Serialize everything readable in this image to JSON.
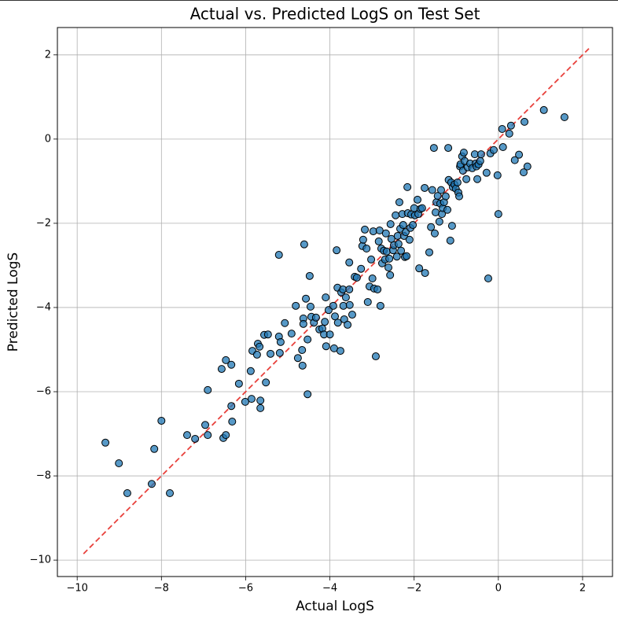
{
  "chart_data": {
    "type": "scatter",
    "title": "Actual vs. Predicted LogS on Test Set",
    "x_label": "Actual LogS",
    "y_label": "Predicted LogS",
    "color": "#1f77b4",
    "edge_color": "#000000",
    "grid": true,
    "xlim": [
      -10.47,
      2.71
    ],
    "ylim": [
      -10.39,
      2.65
    ],
    "xticks": [
      {
        "value": -10,
        "label": "−10"
      },
      {
        "value": -8,
        "label": "−8"
      },
      {
        "value": -6,
        "label": "−6"
      },
      {
        "value": -4,
        "label": "−4"
      },
      {
        "value": -2,
        "label": "−2"
      },
      0,
      2
    ],
    "yticks": [
      {
        "value": -10,
        "label": "−10"
      },
      {
        "value": -8,
        "label": "−8"
      },
      {
        "value": -6,
        "label": "−6"
      },
      {
        "value": -4,
        "label": "−4"
      },
      {
        "value": -2,
        "label": "−2"
      },
      0,
      2
    ],
    "reference_line": {
      "x": [
        -9.85,
        2.15
      ],
      "values": [
        -9.85,
        2.15
      ],
      "color": "#e8413c"
    },
    "x": [
      -9.33,
      -9.01,
      -8.81,
      -8.23,
      -8.17,
      -8.0,
      -7.8,
      -7.39,
      -7.2,
      -6.96,
      -6.9,
      -6.9,
      -6.53,
      -6.47,
      -6.57,
      -6.47,
      -6.34,
      -6.34,
      -6.32,
      -6.16,
      -6.01,
      -5.86,
      -5.88,
      -5.84,
      -5.71,
      -5.67,
      -5.73,
      -5.65,
      -5.65,
      -5.56,
      -5.47,
      -5.52,
      -5.41,
      -5.21,
      -5.17,
      -5.19,
      -5.21,
      -5.07,
      -4.91,
      -4.81,
      -4.76,
      -4.66,
      -4.65,
      -4.63,
      -4.63,
      -4.61,
      -4.57,
      -4.53,
      -4.53,
      -4.48,
      -4.46,
      -4.44,
      -4.38,
      -4.33,
      -4.25,
      -4.18,
      -4.14,
      -4.12,
      -4.1,
      -4.09,
      -4.03,
      -4.0,
      -3.92,
      -3.9,
      -3.88,
      -3.84,
      -3.82,
      -3.81,
      -3.75,
      -3.73,
      -3.69,
      -3.68,
      -3.66,
      -3.62,
      -3.58,
      -3.54,
      -3.54,
      -3.53,
      -3.47,
      -3.41,
      -3.36,
      -3.26,
      -3.23,
      -3.21,
      -3.17,
      -3.13,
      -3.1,
      -3.06,
      -3.02,
      -2.99,
      -2.97,
      -2.95,
      -2.91,
      -2.87,
      -2.84,
      -2.82,
      -2.8,
      -2.78,
      -2.76,
      -2.72,
      -2.69,
      -2.67,
      -2.65,
      -2.61,
      -2.59,
      -2.57,
      -2.56,
      -2.54,
      -2.5,
      -2.48,
      -2.44,
      -2.41,
      -2.39,
      -2.37,
      -2.35,
      -2.33,
      -2.31,
      -2.28,
      -2.26,
      -2.24,
      -2.22,
      -2.2,
      -2.18,
      -2.16,
      -2.15,
      -2.11,
      -2.09,
      -2.07,
      -2.03,
      -2.0,
      -1.98,
      -1.92,
      -1.9,
      -1.88,
      -1.85,
      -1.81,
      -1.75,
      -1.74,
      -1.64,
      -1.6,
      -1.57,
      -1.53,
      -1.51,
      -1.49,
      -1.47,
      -1.44,
      -1.4,
      -1.38,
      -1.36,
      -1.34,
      -1.32,
      -1.29,
      -1.25,
      -1.21,
      -1.19,
      -1.18,
      -1.14,
      -1.12,
      -1.1,
      -1.08,
      -1.04,
      -1.01,
      -0.97,
      -0.95,
      -0.93,
      -0.91,
      -0.9,
      -0.86,
      -0.84,
      -0.82,
      -0.8,
      -0.76,
      -0.73,
      -0.67,
      -0.62,
      -0.56,
      -0.54,
      -0.52,
      -0.5,
      -0.47,
      -0.43,
      -0.41,
      -0.28,
      -0.24,
      -0.19,
      -0.11,
      -0.02,
      0.0,
      0.09,
      0.11,
      0.26,
      0.3,
      0.39,
      0.49,
      0.6,
      0.62,
      0.69,
      1.08,
      1.57
    ],
    "values": [
      -7.21,
      -7.7,
      -8.41,
      -8.19,
      -7.36,
      -6.69,
      -8.41,
      -7.03,
      -7.12,
      -6.79,
      -5.96,
      -7.03,
      -7.1,
      -7.03,
      -5.46,
      -5.25,
      -5.36,
      -6.34,
      -6.71,
      -5.81,
      -6.24,
      -6.17,
      -5.51,
      -5.03,
      -4.86,
      -4.93,
      -5.12,
      -6.21,
      -6.39,
      -4.65,
      -4.64,
      -5.78,
      -5.1,
      -4.69,
      -4.82,
      -5.08,
      -2.75,
      -4.37,
      -4.62,
      -3.96,
      -5.2,
      -5.01,
      -5.38,
      -4.26,
      -4.39,
      -2.5,
      -3.79,
      -4.76,
      -6.06,
      -3.25,
      -3.98,
      -4.22,
      -4.36,
      -4.24,
      -4.52,
      -4.5,
      -4.64,
      -4.34,
      -3.76,
      -4.92,
      -4.06,
      -4.64,
      -3.96,
      -4.97,
      -4.21,
      -2.64,
      -3.53,
      -4.36,
      -5.03,
      -3.64,
      -3.57,
      -3.96,
      -4.28,
      -3.76,
      -4.41,
      -3.57,
      -2.93,
      -3.94,
      -4.17,
      -3.27,
      -3.29,
      -3.08,
      -2.54,
      -2.39,
      -2.15,
      -2.6,
      -3.87,
      -3.5,
      -2.86,
      -3.31,
      -2.19,
      -3.55,
      -5.16,
      -3.57,
      -2.43,
      -2.17,
      -3.96,
      -2.6,
      -2.95,
      -2.65,
      -2.86,
      -2.24,
      -2.67,
      -3.05,
      -2.84,
      -3.23,
      -2.02,
      -2.37,
      -2.64,
      -2.52,
      -1.81,
      -2.79,
      -2.3,
      -2.49,
      -1.5,
      -2.13,
      -2.65,
      -1.78,
      -2.04,
      -2.3,
      -2.8,
      -2.21,
      -2.78,
      -1.14,
      -1.76,
      -2.39,
      -2.11,
      -1.79,
      -2.04,
      -1.64,
      -1.81,
      -1.44,
      -1.78,
      -3.07,
      -1.66,
      -1.64,
      -1.16,
      -3.18,
      -2.69,
      -2.09,
      -1.21,
      -0.21,
      -2.24,
      -1.74,
      -1.5,
      -1.35,
      -1.96,
      -1.53,
      -1.21,
      -1.78,
      -1.64,
      -1.5,
      -1.36,
      -1.68,
      -0.21,
      -0.97,
      -2.41,
      -1.03,
      -2.06,
      -1.14,
      -1.08,
      -1.18,
      -1.03,
      -1.27,
      -1.36,
      -0.65,
      -0.6,
      -0.41,
      -0.75,
      -0.32,
      -0.52,
      -0.95,
      -0.67,
      -0.58,
      -0.69,
      -0.36,
      -0.58,
      -0.65,
      -0.95,
      -0.6,
      -0.52,
      -0.36,
      -0.8,
      -3.31,
      -0.34,
      -0.26,
      -0.86,
      -1.78,
      0.24,
      -0.19,
      0.13,
      0.32,
      -0.5,
      -0.37,
      -0.79,
      0.41,
      -0.65,
      0.69,
      0.52
    ]
  }
}
